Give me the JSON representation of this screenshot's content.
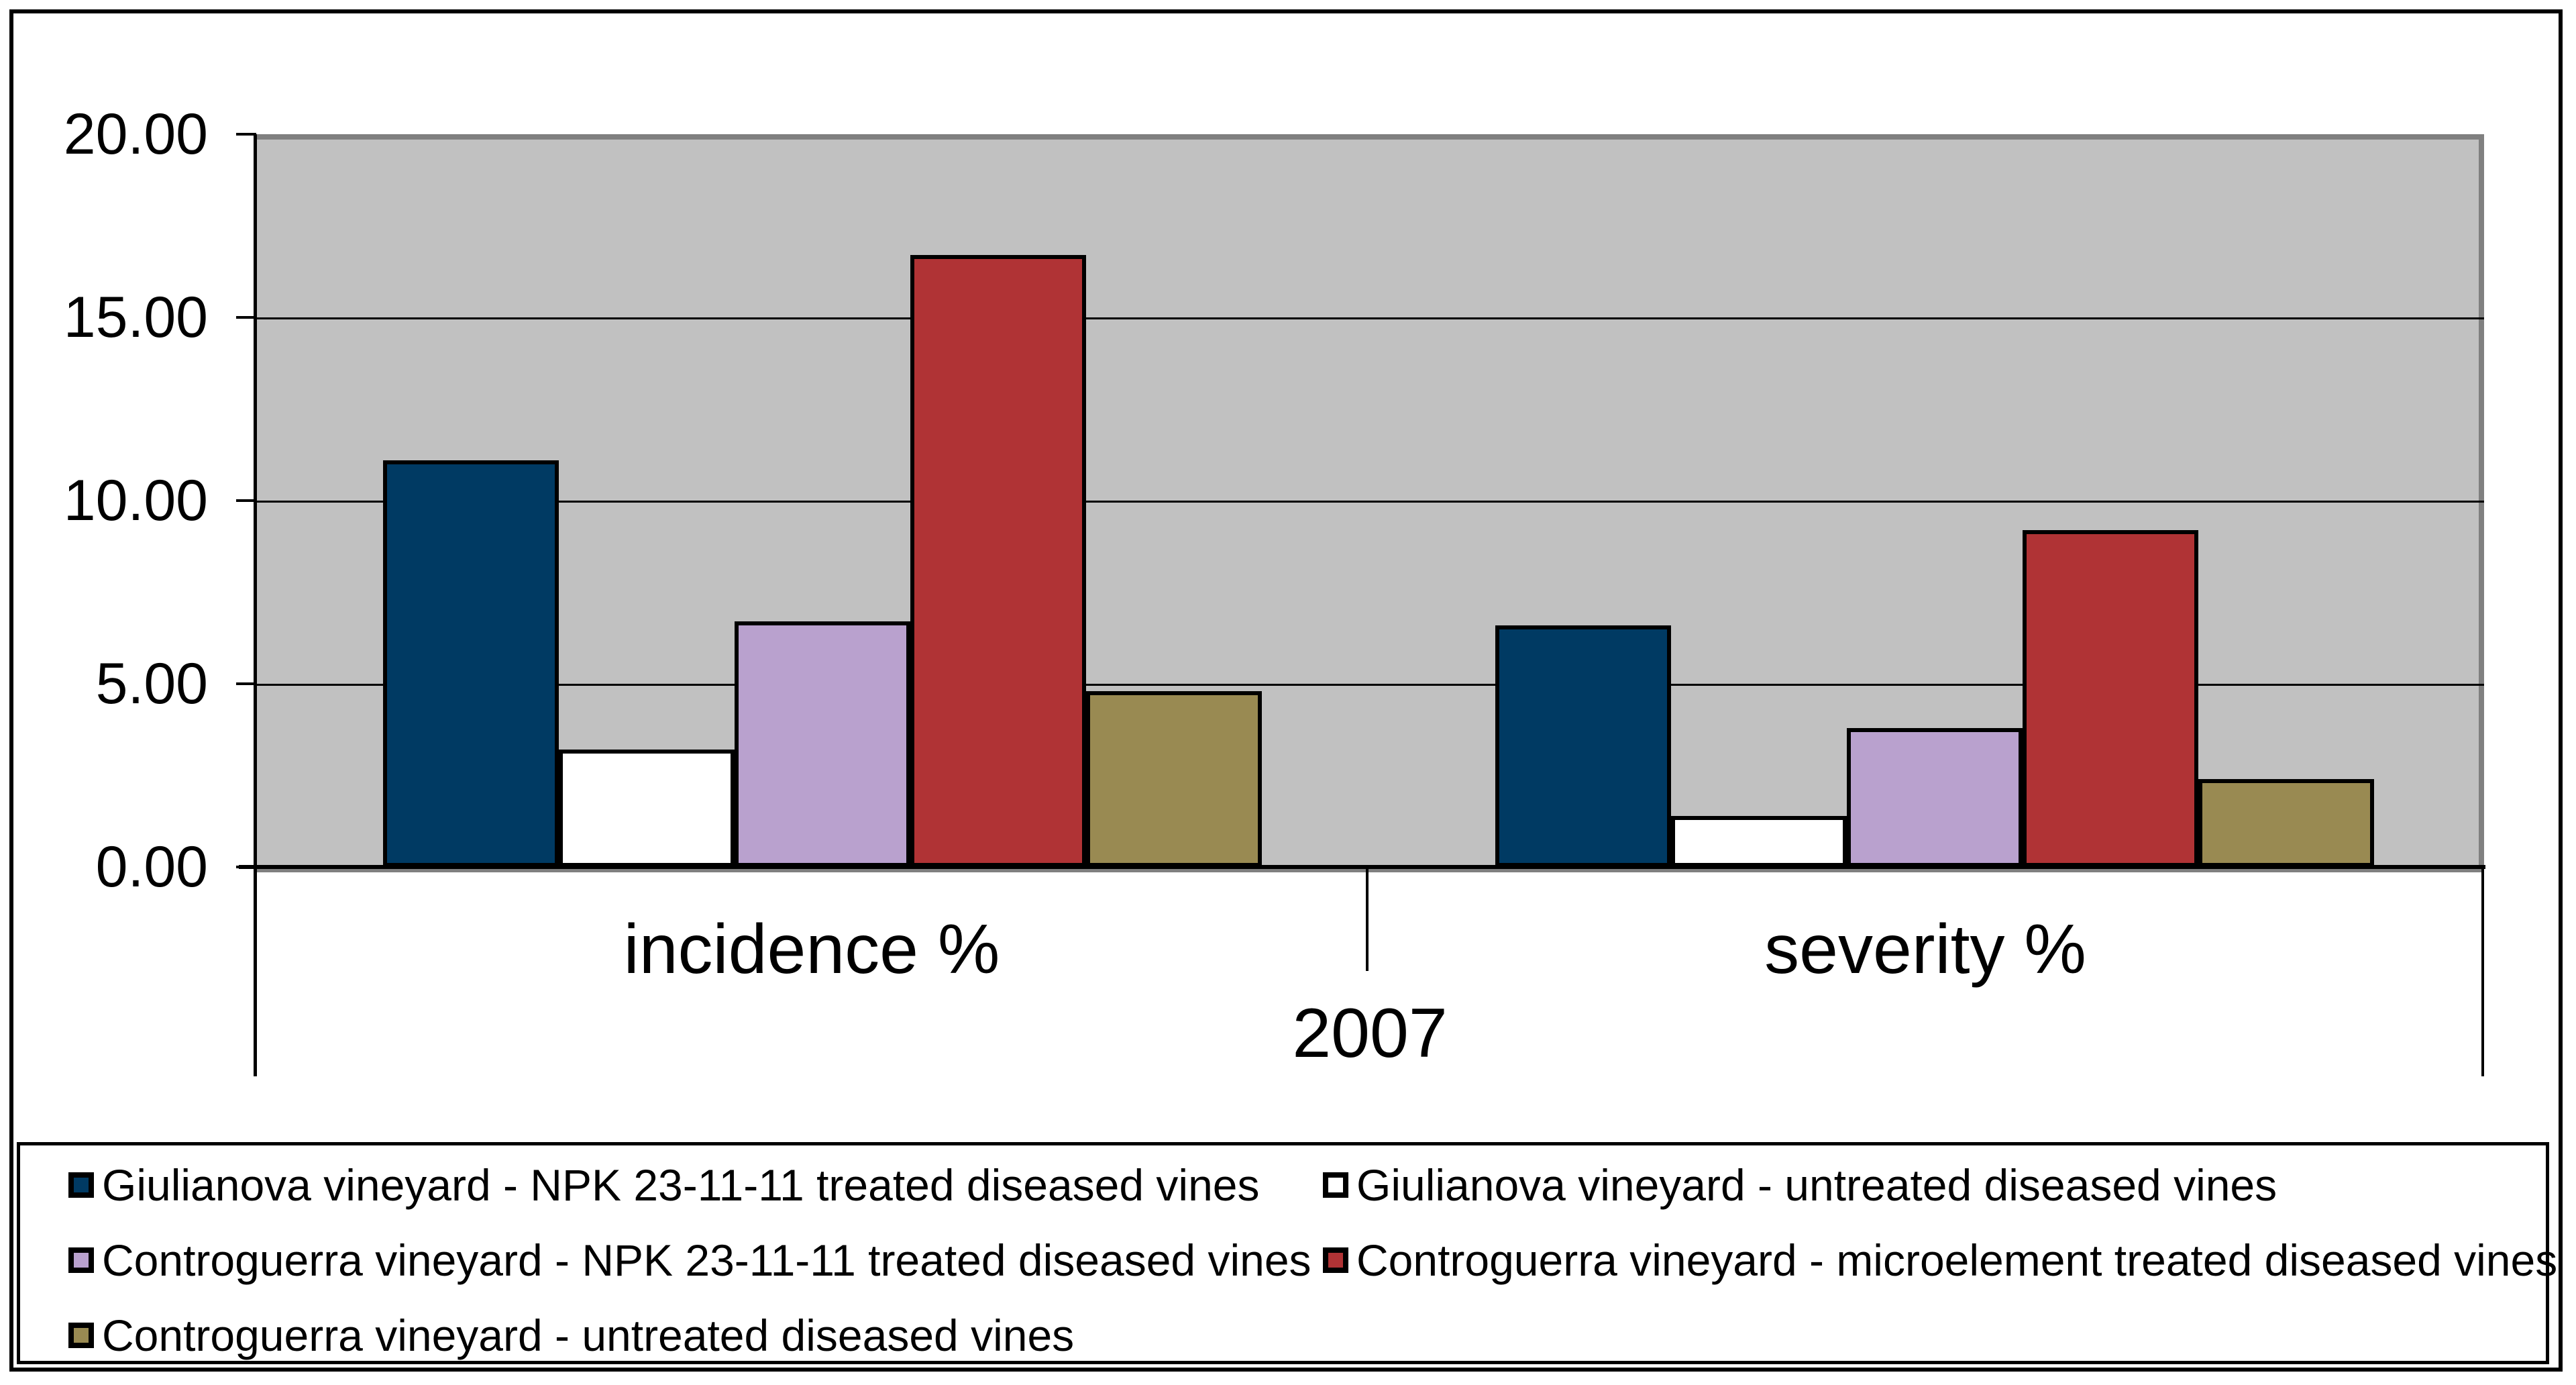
{
  "chart_data": {
    "type": "bar",
    "title": "",
    "categories": [
      "incidence %",
      "severity %"
    ],
    "group_label": "2007",
    "series": [
      {
        "name": "Giulianova vineyard - NPK 23-11-11 treated diseased vines",
        "color": "#003A63",
        "values": [
          11.1,
          6.6
        ]
      },
      {
        "name": "Giulianova vineyard - untreated diseased vines",
        "color": "#FFFFFF",
        "values": [
          3.2,
          1.4
        ]
      },
      {
        "name": "Controguerra vineyard - NPK 23-11-11 treated diseased vines",
        "color": "#B9A1CE",
        "values": [
          6.7,
          3.8
        ]
      },
      {
        "name": "Controguerra vineyard - microelement treated diseased vines",
        "color": "#B03335",
        "values": [
          16.7,
          9.2
        ]
      },
      {
        "name": "Controguerra vineyard - untreated diseased vines",
        "color": "#998A52",
        "values": [
          4.8,
          2.4
        ]
      }
    ],
    "y_axis": {
      "min": 0,
      "max": 20,
      "step": 5,
      "tick_labels": [
        "20.00",
        "15.00",
        "10.00",
        "5.00",
        "0.00"
      ]
    },
    "grid": true,
    "legend_position": "bottom",
    "colors": {
      "plot_bg": "#C1C1C1",
      "plot_border": "#808080",
      "axis": "#000000",
      "bar_border": "#000000",
      "background": "#FFFFFF"
    }
  }
}
